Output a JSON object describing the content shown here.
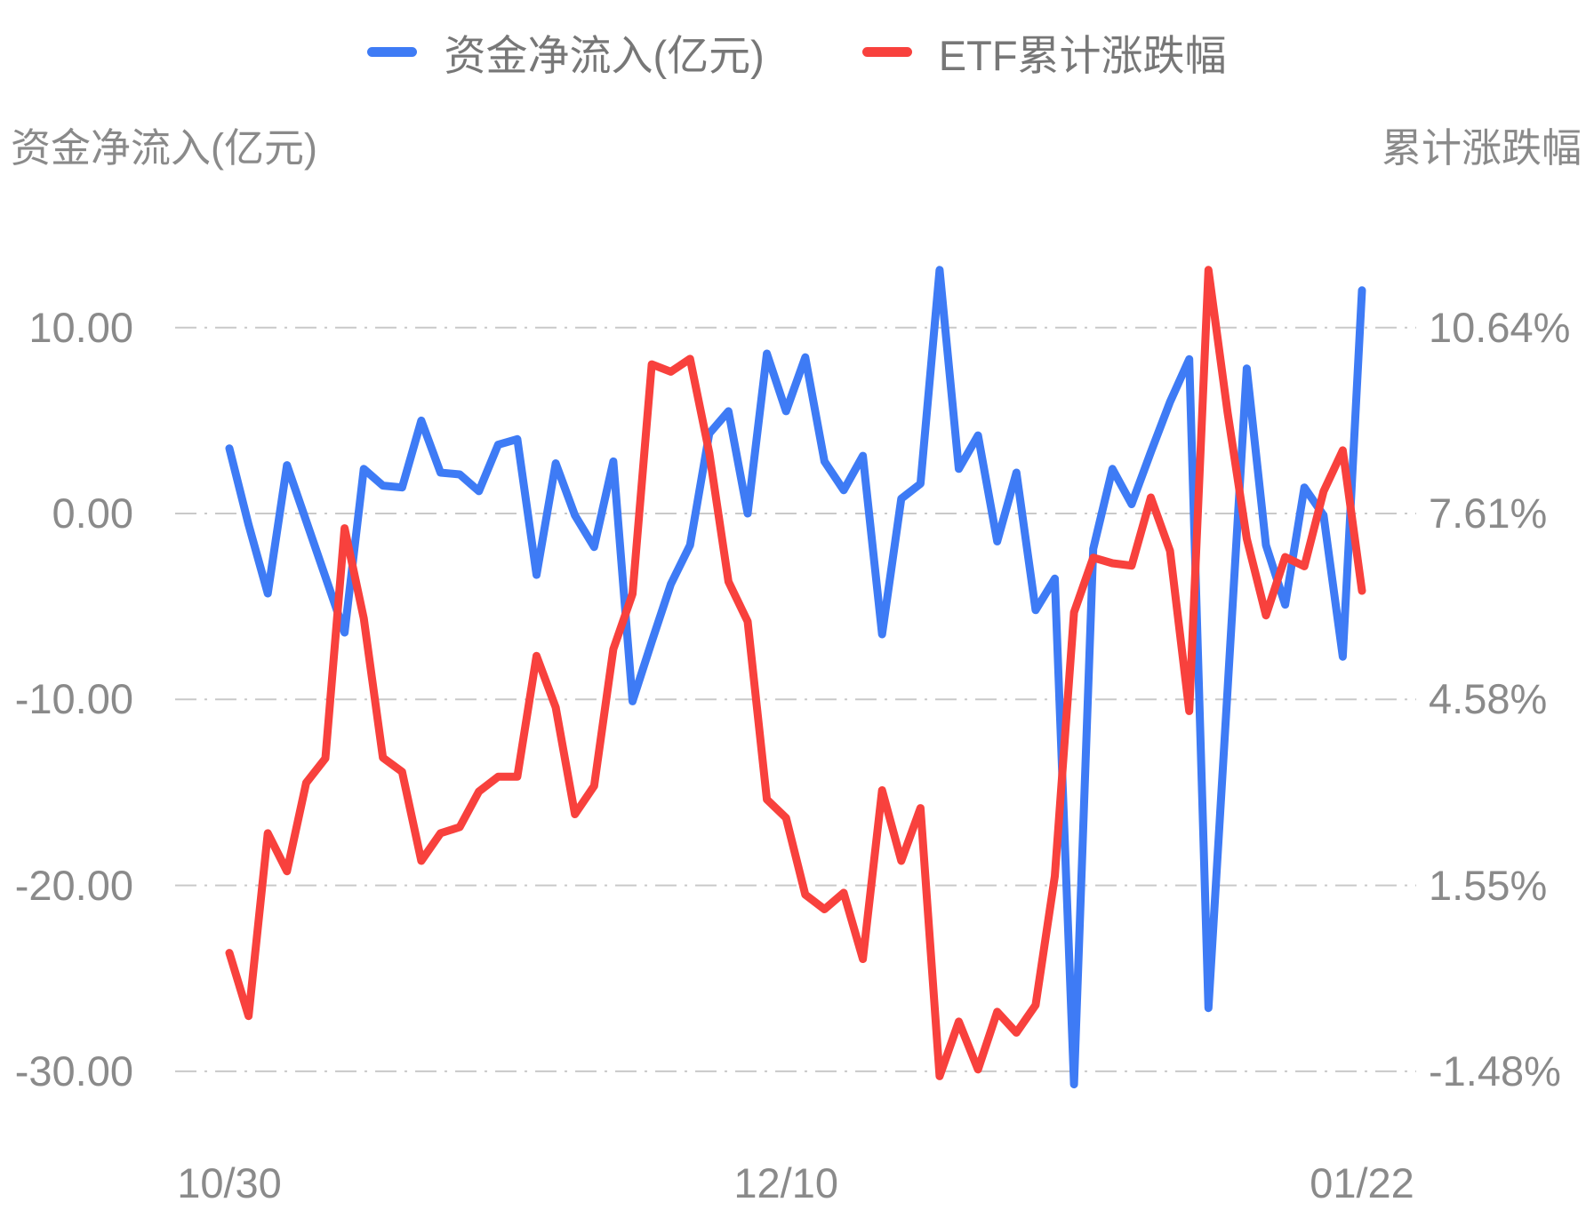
{
  "legend": {
    "items": [
      {
        "label": "资金净流入(亿元)",
        "color": "#3E7BF5"
      },
      {
        "label": "ETF累计涨跌幅",
        "color": "#F8413D"
      }
    ]
  },
  "left_axis": {
    "title": "资金净流入(亿元)",
    "ticks": [
      {
        "value": 10,
        "label": "10.00"
      },
      {
        "value": 0,
        "label": "0.00"
      },
      {
        "value": -10,
        "label": "-10.00"
      },
      {
        "value": -20,
        "label": "-20.00"
      },
      {
        "value": -30,
        "label": "-30.00"
      }
    ]
  },
  "right_axis": {
    "title": "累计涨跌幅",
    "ticks": [
      {
        "value": 10.64,
        "label": "10.64%"
      },
      {
        "value": 7.61,
        "label": "7.61%"
      },
      {
        "value": 4.58,
        "label": "4.58%"
      },
      {
        "value": 1.55,
        "label": "1.55%"
      },
      {
        "value": -1.48,
        "label": "-1.48%"
      }
    ]
  },
  "x_axis": {
    "ticks": [
      {
        "index": 0,
        "label": "10/30"
      },
      {
        "index": 29,
        "label": "12/10"
      },
      {
        "index": 59,
        "label": "01/22"
      }
    ]
  },
  "chart_data": {
    "type": "line",
    "title": "",
    "grid": true,
    "grid_color": "#c9c9c9",
    "legend_position": "top-center",
    "x": [
      "10/30",
      "10/31",
      "11/01",
      "11/04",
      "11/05",
      "11/06",
      "11/07",
      "11/08",
      "11/11",
      "11/12",
      "11/13",
      "11/14",
      "11/15",
      "11/18",
      "11/19",
      "11/20",
      "11/21",
      "11/22",
      "11/25",
      "11/26",
      "11/27",
      "11/28",
      "11/29",
      "12/02",
      "12/03",
      "12/04",
      "12/05",
      "12/06",
      "12/09",
      "12/10",
      "12/11",
      "12/12",
      "12/13",
      "12/16",
      "12/17",
      "12/18",
      "12/19",
      "12/20",
      "12/23",
      "12/24",
      "12/25",
      "12/26",
      "12/27",
      "12/30",
      "12/31",
      "01/02",
      "01/03",
      "01/06",
      "01/07",
      "01/08",
      "01/09",
      "01/10",
      "01/13",
      "01/14",
      "01/15",
      "01/16",
      "01/17",
      "01/20",
      "01/21",
      "01/22"
    ],
    "series": [
      {
        "name": "资金净流入(亿元)",
        "axis": "left",
        "unit": "亿元",
        "color": "#3E7BF5",
        "values": [
          3.5,
          -0.6,
          -4.3,
          2.6,
          -0.4,
          -3.4,
          -6.4,
          2.4,
          1.5,
          1.4,
          5.0,
          2.2,
          2.1,
          1.2,
          3.7,
          4.0,
          -3.3,
          2.7,
          -0.1,
          -1.8,
          2.8,
          -10.1,
          -6.9,
          -3.8,
          -1.7,
          4.3,
          5.5,
          0.0,
          8.6,
          5.5,
          8.4,
          2.8,
          1.25,
          3.1,
          -6.5,
          0.8,
          1.6,
          13.1,
          2.4,
          4.2,
          -1.5,
          2.2,
          -5.2,
          -3.5,
          -30.7,
          -1.9,
          2.4,
          0.5,
          3.3,
          6.0,
          8.3,
          -26.6,
          -9.5,
          7.8,
          -1.7,
          -4.9,
          1.4,
          -0.1,
          -7.7,
          12.0
        ]
      },
      {
        "name": "ETF累计涨跌幅",
        "axis": "right",
        "unit": "%",
        "color": "#F8413D",
        "values": [
          0.45,
          -0.58,
          2.4,
          1.78,
          3.22,
          3.62,
          7.37,
          5.9,
          3.63,
          3.4,
          1.95,
          2.4,
          2.5,
          3.08,
          3.32,
          3.32,
          5.29,
          4.45,
          2.71,
          3.17,
          5.4,
          6.3,
          10.04,
          9.92,
          10.13,
          8.6,
          6.5,
          5.85,
          2.95,
          2.65,
          1.4,
          1.16,
          1.43,
          0.35,
          3.1,
          1.95,
          2.81,
          -1.56,
          -0.67,
          -1.45,
          -0.51,
          -0.85,
          -0.4,
          1.7,
          6.0,
          6.89,
          6.8,
          6.76,
          7.87,
          7.0,
          4.39,
          11.58,
          9.26,
          7.2,
          5.95,
          6.9,
          6.75,
          7.97,
          8.64,
          6.35
        ]
      }
    ],
    "left_ylim": [
      -33.5,
      15.5
    ],
    "right_ylim": [
      -2.54,
      12.3
    ],
    "axis_link": "left 0.00 aligns with right 7.61%, 10 units left = 3.03% right"
  }
}
